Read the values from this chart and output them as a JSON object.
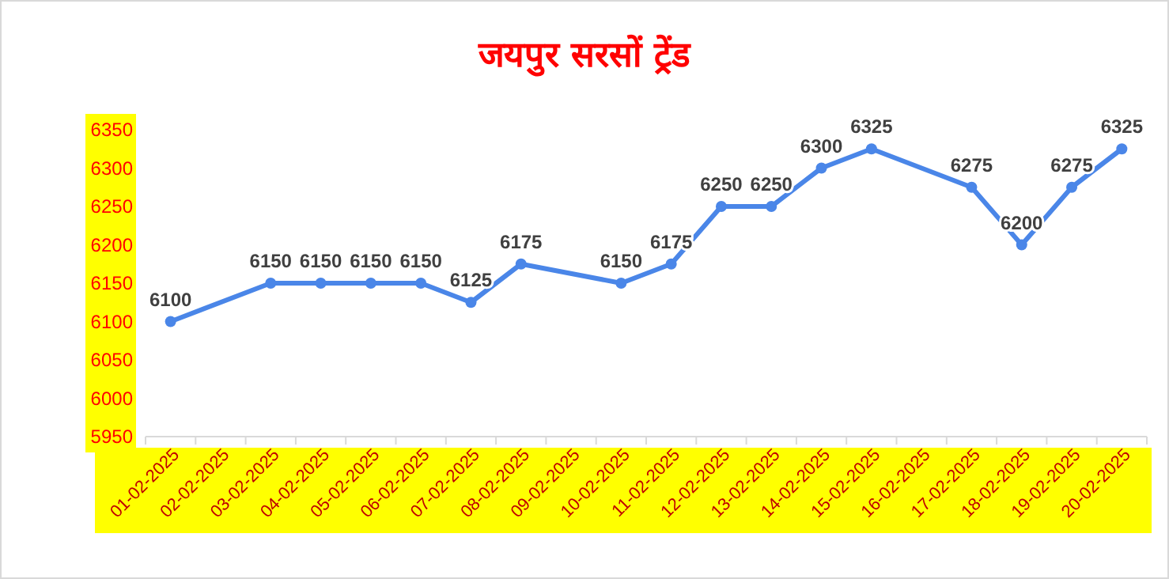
{
  "chart_data": {
    "type": "line",
    "title": "जयपुर सरसों ट्रेंड",
    "categories": [
      "01-02-2025",
      "02-02-2025",
      "03-02-2025",
      "04-02-2025",
      "05-02-2025",
      "06-02-2025",
      "07-02-2025",
      "08-02-2025",
      "09-02-2025",
      "10-02-2025",
      "11-02-2025",
      "12-02-2025",
      "13-02-2025",
      "14-02-2025",
      "15-02-2025",
      "16-02-2025",
      "17-02-2025",
      "18-02-2025",
      "19-02-2025",
      "20-02-2025"
    ],
    "series": [
      {
        "color": "#4a86e8",
        "values": [
          6100,
          null,
          6150,
          6150,
          6150,
          6150,
          6125,
          6175,
          null,
          6150,
          6175,
          6250,
          6250,
          6300,
          6325,
          null,
          6275,
          6200,
          6275,
          6325
        ]
      }
    ],
    "ylim": [
      5950,
      6350
    ],
    "yticks": [
      5950,
      6000,
      6050,
      6100,
      6150,
      6200,
      6250,
      6300,
      6350
    ],
    "grid": false,
    "marker": "circle",
    "line_style": "solid",
    "data_labels": true
  }
}
